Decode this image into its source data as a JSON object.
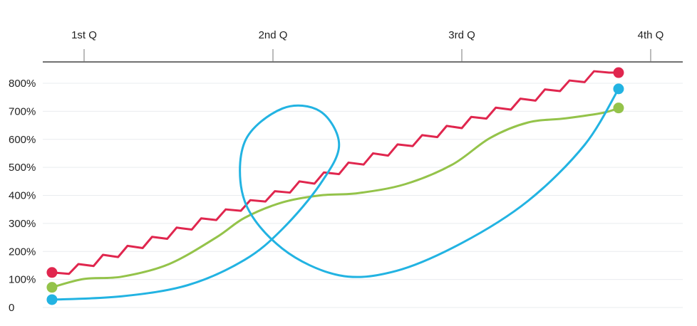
{
  "chart_data": {
    "type": "line",
    "x_axis": {
      "position": "top",
      "tick_labels": [
        "1st Q",
        "2nd Q",
        "3rd Q",
        "4th Q"
      ],
      "tick_values": [
        1,
        2,
        3,
        4
      ],
      "range": [
        0.8,
        4.1
      ]
    },
    "y_axis": {
      "tick_labels": [
        "0",
        "100%",
        "200%",
        "300%",
        "400%",
        "500%",
        "600%",
        "700%",
        "800%"
      ],
      "tick_values": [
        0,
        100,
        200,
        300,
        400,
        500,
        600,
        700,
        800
      ],
      "range": [
        -10,
        830
      ]
    },
    "grid": true,
    "series": [
      {
        "key": "red",
        "color": "#e0264e",
        "smooth": false,
        "points": [
          [
            0.83,
            125
          ],
          [
            0.92,
            120
          ],
          [
            0.97,
            155
          ],
          [
            1.05,
            148
          ],
          [
            1.1,
            188
          ],
          [
            1.18,
            180
          ],
          [
            1.23,
            220
          ],
          [
            1.31,
            212
          ],
          [
            1.36,
            252
          ],
          [
            1.44,
            245
          ],
          [
            1.49,
            285
          ],
          [
            1.57,
            278
          ],
          [
            1.62,
            318
          ],
          [
            1.7,
            312
          ],
          [
            1.75,
            350
          ],
          [
            1.83,
            345
          ],
          [
            1.88,
            383
          ],
          [
            1.96,
            378
          ],
          [
            2.01,
            415
          ],
          [
            2.09,
            410
          ],
          [
            2.14,
            450
          ],
          [
            2.22,
            442
          ],
          [
            2.27,
            482
          ],
          [
            2.35,
            476
          ],
          [
            2.4,
            517
          ],
          [
            2.48,
            510
          ],
          [
            2.53,
            550
          ],
          [
            2.61,
            542
          ],
          [
            2.66,
            582
          ],
          [
            2.74,
            576
          ],
          [
            2.79,
            615
          ],
          [
            2.87,
            608
          ],
          [
            2.92,
            648
          ],
          [
            3.0,
            640
          ],
          [
            3.05,
            680
          ],
          [
            3.13,
            674
          ],
          [
            3.18,
            713
          ],
          [
            3.26,
            706
          ],
          [
            3.31,
            745
          ],
          [
            3.39,
            738
          ],
          [
            3.44,
            778
          ],
          [
            3.52,
            772
          ],
          [
            3.57,
            810
          ],
          [
            3.65,
            804
          ],
          [
            3.7,
            843
          ],
          [
            3.78,
            838
          ],
          [
            3.83,
            838
          ]
        ]
      },
      {
        "key": "green",
        "color": "#94c34a",
        "smooth": true,
        "points": [
          [
            0.83,
            72
          ],
          [
            1.0,
            102
          ],
          [
            1.2,
            110
          ],
          [
            1.45,
            155
          ],
          [
            1.7,
            250
          ],
          [
            1.85,
            320
          ],
          [
            2.05,
            375
          ],
          [
            2.25,
            400
          ],
          [
            2.45,
            408
          ],
          [
            2.7,
            440
          ],
          [
            2.95,
            510
          ],
          [
            3.15,
            605
          ],
          [
            3.35,
            660
          ],
          [
            3.55,
            675
          ],
          [
            3.75,
            695
          ],
          [
            3.83,
            712
          ]
        ]
      },
      {
        "key": "blue",
        "color": "#22b3e2",
        "smooth": true,
        "points": [
          [
            0.83,
            28
          ],
          [
            1.2,
            40
          ],
          [
            1.55,
            80
          ],
          [
            1.85,
            170
          ],
          [
            2.05,
            280
          ],
          [
            2.25,
            440
          ],
          [
            2.35,
            580
          ],
          [
            2.25,
            700
          ],
          [
            2.05,
            710
          ],
          [
            1.85,
            590
          ],
          [
            1.85,
            380
          ],
          [
            2.05,
            210
          ],
          [
            2.35,
            115
          ],
          [
            2.65,
            130
          ],
          [
            3.0,
            230
          ],
          [
            3.35,
            380
          ],
          [
            3.65,
            580
          ],
          [
            3.83,
            780
          ]
        ]
      }
    ]
  }
}
